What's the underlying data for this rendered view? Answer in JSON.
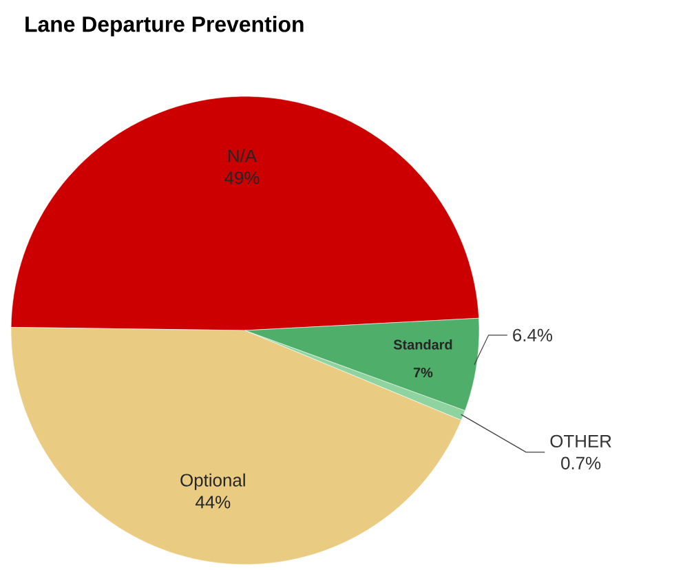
{
  "chart_data": {
    "type": "pie",
    "title": "Lane Departure Prevention",
    "categories": [
      "N/A",
      "Optional",
      "OTHER",
      null
    ],
    "values": [
      49,
      44,
      0.7,
      6.4
    ],
    "value_labels": [
      "49%",
      "44%",
      "0.7%",
      "6.4%"
    ],
    "colors": [
      "#cc0000",
      "#e9cb82",
      "#8fd4a0",
      "#4fae6a"
    ],
    "annotations": [
      "Standard",
      "7%"
    ]
  }
}
